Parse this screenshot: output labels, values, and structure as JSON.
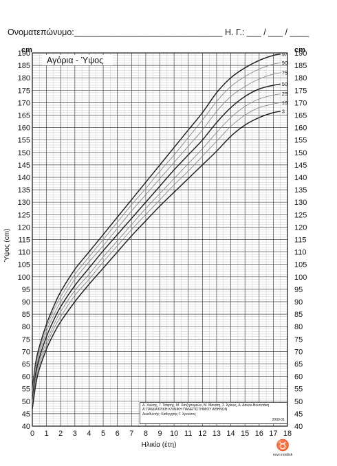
{
  "header": {
    "name_label": "Ονοματεπώνυμο:_______________________________",
    "date_label": "Η. Γ.: ___ / ___ / ____"
  },
  "chart_data": {
    "type": "line",
    "title": "Αγόρια - Ύψος",
    "xlabel": "Ηλικία (έτη)",
    "ylabel": "Ύψος (cm)",
    "unit_label": "cm",
    "xlim": [
      0,
      18
    ],
    "ylim": [
      40,
      190
    ],
    "x_ticks": [
      0,
      1,
      2,
      3,
      4,
      5,
      6,
      7,
      8,
      9,
      10,
      11,
      12,
      13,
      14,
      15,
      16,
      17,
      18
    ],
    "y_ticks": [
      40,
      45,
      50,
      55,
      60,
      65,
      70,
      75,
      80,
      85,
      90,
      95,
      100,
      105,
      110,
      115,
      120,
      125,
      130,
      135,
      140,
      145,
      150,
      155,
      160,
      165,
      170,
      175,
      180,
      185,
      190
    ],
    "grid": true,
    "x": [
      0,
      0.25,
      0.5,
      1,
      1.5,
      2,
      3,
      4,
      5,
      6,
      7,
      8,
      9,
      10,
      11,
      12,
      13,
      14,
      15,
      16,
      17,
      17.5
    ],
    "series": [
      {
        "name": "97",
        "color": "#222222",
        "values": [
          55,
          66,
          72,
          81,
          88,
          94,
          103,
          110,
          117,
          124,
          131,
          138,
          145,
          152,
          159,
          166,
          174,
          180,
          184,
          187,
          189,
          189.5
        ]
      },
      {
        "name": "90",
        "color": "#888888",
        "values": [
          54,
          64.5,
          70.5,
          79.5,
          86.5,
          92,
          101,
          108,
          115,
          122,
          129,
          135.5,
          142.5,
          149,
          156,
          163,
          170.5,
          176.5,
          180.5,
          183.5,
          185.5,
          186
        ]
      },
      {
        "name": "75",
        "color": "#888888",
        "values": [
          52.5,
          63,
          69,
          78,
          84.5,
          90,
          99,
          106,
          112.5,
          119.5,
          126.5,
          133,
          139.5,
          146,
          152.5,
          159,
          166.5,
          172.5,
          176.5,
          179.5,
          181.5,
          182
        ]
      },
      {
        "name": "50",
        "color": "#222222",
        "values": [
          51,
          61.5,
          67.5,
          76,
          82.5,
          88,
          96.5,
          103.5,
          110.5,
          117,
          123.5,
          130,
          136.5,
          143,
          149,
          155,
          162,
          168,
          172.5,
          175.5,
          177,
          177.5
        ]
      },
      {
        "name": "25",
        "color": "#888888",
        "values": [
          49.5,
          60,
          66,
          74,
          80.5,
          86,
          94.5,
          101,
          108,
          114.5,
          121,
          127.5,
          133.5,
          139.5,
          145.5,
          151.5,
          158,
          164,
          168.5,
          171.5,
          173,
          173.5
        ]
      },
      {
        "name": "10",
        "color": "#888888",
        "values": [
          48.5,
          58.5,
          64.5,
          72.5,
          79,
          84,
          92.5,
          99,
          106,
          112.5,
          119,
          125,
          131,
          137,
          142.5,
          148.5,
          154.5,
          160.5,
          165,
          168,
          169.5,
          170
        ]
      },
      {
        "name": "3",
        "color": "#222222",
        "values": [
          47,
          57,
          63,
          71,
          77,
          82,
          90,
          97,
          103.5,
          110,
          116.5,
          122.5,
          128.5,
          134,
          139.5,
          145,
          150.5,
          156.5,
          161,
          164,
          166,
          166.5
        ]
      }
    ]
  },
  "credits": {
    "line1": "Δ. Χιώτης, Γ. Τσίφτης, Μ. Χατζησυμεών, Μ. Μανάτη, Σ. Κρίκος, Α. Δάκου-Βουτετάκη",
    "line2": "Α' ΠΑΙΔΙΑΤΡΙΚΗ ΚΛΙΝΙΚΗ ΠΑΝΕΠΙΣΤΗΜΙΟΥ ΑΘΗΝΩΝ",
    "line3": "Διευθυντής: Καθηγητής Γ. Χρούσος",
    "year": "2000-01"
  },
  "logo": {
    "text": "novo nordisk"
  }
}
